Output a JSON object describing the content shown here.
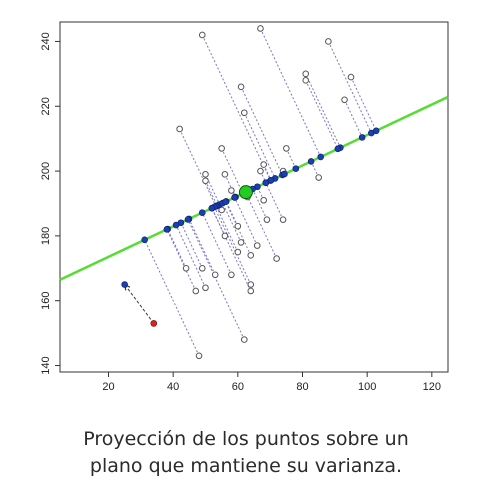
{
  "caption": {
    "line1": "Proyección de los puntos sobre un",
    "line2": "plano que mantiene su varianza."
  },
  "chart_data": {
    "type": "scatter",
    "title": "",
    "xlabel": "",
    "ylabel": "",
    "xlim": [
      5,
      125
    ],
    "ylim": [
      138,
      246
    ],
    "x_ticks": [
      20,
      40,
      60,
      80,
      100,
      120
    ],
    "y_ticks": [
      140,
      160,
      180,
      200,
      220,
      240
    ],
    "grid": false,
    "colors": {
      "regression_line": "#55dd33",
      "projected_point": "#1a3fb0",
      "original_point": "#555555",
      "mean_point": "#22cc22",
      "highlight_point": "#dd2222",
      "projection_line": "#7777cc"
    },
    "regression_line": {
      "slope": 0.47,
      "mean": [
        62.5,
        193.5
      ]
    },
    "mean_point": [
      62.5,
      193.5
    ],
    "highlight_point": [
      34,
      153
    ],
    "highlight_projection": [
      25,
      165
    ],
    "points": [
      [
        49,
        242
      ],
      [
        67,
        244
      ],
      [
        88,
        240
      ],
      [
        81,
        230
      ],
      [
        81,
        228
      ],
      [
        95,
        229
      ],
      [
        93,
        222
      ],
      [
        61,
        226
      ],
      [
        62,
        218
      ],
      [
        42,
        213
      ],
      [
        55,
        207
      ],
      [
        75,
        207
      ],
      [
        68,
        202
      ],
      [
        67,
        200
      ],
      [
        74,
        200
      ],
      [
        50,
        199
      ],
      [
        56,
        199
      ],
      [
        85,
        198
      ],
      [
        50,
        197
      ],
      [
        58,
        194
      ],
      [
        63,
        192
      ],
      [
        68,
        191
      ],
      [
        55,
        188
      ],
      [
        60,
        183
      ],
      [
        69,
        185
      ],
      [
        74,
        185
      ],
      [
        56,
        180
      ],
      [
        61,
        178
      ],
      [
        66,
        177
      ],
      [
        72,
        173
      ],
      [
        60,
        175
      ],
      [
        64,
        174
      ],
      [
        44,
        170
      ],
      [
        49,
        170
      ],
      [
        53,
        168
      ],
      [
        58,
        168
      ],
      [
        47,
        163
      ],
      [
        50,
        164
      ],
      [
        64,
        165
      ],
      [
        64,
        163
      ],
      [
        62,
        148
      ],
      [
        48,
        143
      ]
    ]
  }
}
